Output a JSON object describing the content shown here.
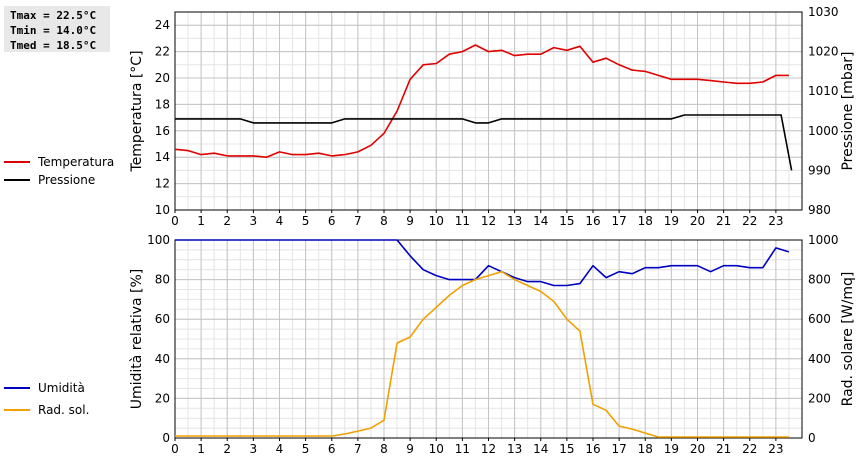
{
  "stats": {
    "tmax": "Tmax = 22.5°C",
    "tmin": "Tmin = 14.0°C",
    "tmed": "Tmed = 18.5°C"
  },
  "chart_data": [
    {
      "type": "line",
      "ylabel": "Temperatura [°C]",
      "y2label": "Pressione [mbar]",
      "xlim": [
        0,
        24
      ],
      "ylim": [
        10,
        25
      ],
      "y2lim": [
        980,
        1030
      ],
      "xticks": [
        0,
        1,
        2,
        3,
        4,
        5,
        6,
        7,
        8,
        9,
        10,
        11,
        12,
        13,
        14,
        15,
        16,
        17,
        18,
        19,
        20,
        21,
        22,
        23
      ],
      "yticks": [
        10,
        12,
        14,
        16,
        18,
        20,
        22,
        24
      ],
      "y2ticks": [
        980,
        990,
        1000,
        1010,
        1020,
        1030
      ],
      "grid": true,
      "legend_position": "left",
      "series": [
        {
          "name": "Temperatura",
          "color": "#e00000",
          "axis": "left",
          "x": [
            0,
            0.5,
            1,
            1.5,
            2,
            2.5,
            3,
            3.5,
            4,
            4.5,
            5,
            5.5,
            6,
            6.5,
            7,
            7.5,
            8,
            8.5,
            9,
            9.5,
            10,
            10.5,
            11,
            11.5,
            12,
            12.5,
            13,
            13.5,
            14,
            14.5,
            15,
            15.5,
            16,
            16.5,
            17,
            17.5,
            18,
            18.5,
            19,
            19.5,
            20,
            20.5,
            21,
            21.5,
            22,
            22.5,
            23,
            23.5
          ],
          "values": [
            14.6,
            14.5,
            14.2,
            14.3,
            14.1,
            14.1,
            14.1,
            14.0,
            14.4,
            14.2,
            14.2,
            14.3,
            14.1,
            14.2,
            14.4,
            14.9,
            15.8,
            17.5,
            19.9,
            21.0,
            21.1,
            21.8,
            22.0,
            22.5,
            22.0,
            22.1,
            21.7,
            21.8,
            21.8,
            22.3,
            22.1,
            22.4,
            21.2,
            21.5,
            21.0,
            20.6,
            20.5,
            20.2,
            19.9,
            19.9,
            19.9,
            19.8,
            19.7,
            19.6,
            19.6,
            19.7,
            20.2,
            20.2
          ]
        },
        {
          "name": "Pressione",
          "color": "#000000",
          "axis": "right",
          "x": [
            0,
            2.5,
            3,
            6,
            6.5,
            11,
            11.5,
            12,
            12.5,
            19,
            19.5,
            23.2,
            23.6
          ],
          "values": [
            1003,
            1003,
            1002,
            1002,
            1003,
            1003,
            1002,
            1002,
            1003,
            1003,
            1004,
            1004,
            990
          ]
        }
      ]
    },
    {
      "type": "line",
      "ylabel": "Umidità relativa [%]",
      "y2label": "Rad. solare [W/mq]",
      "xlim": [
        0,
        24
      ],
      "ylim": [
        0,
        100
      ],
      "y2lim": [
        0,
        1000
      ],
      "xticks": [
        0,
        1,
        2,
        3,
        4,
        5,
        6,
        7,
        8,
        9,
        10,
        11,
        12,
        13,
        14,
        15,
        16,
        17,
        18,
        19,
        20,
        21,
        22,
        23
      ],
      "yticks": [
        0,
        20,
        40,
        60,
        80,
        100
      ],
      "y2ticks": [
        0,
        200,
        400,
        600,
        800,
        1000
      ],
      "grid": true,
      "legend_position": "left",
      "series": [
        {
          "name": "Umidità",
          "color": "#0000c0",
          "axis": "left",
          "x": [
            0,
            8.5,
            9,
            9.5,
            10,
            10.5,
            11,
            11.5,
            12,
            12.5,
            13,
            13.5,
            14,
            14.5,
            15,
            15.5,
            16,
            16.5,
            17,
            17.5,
            18,
            18.5,
            19,
            19.5,
            20,
            20.5,
            21,
            21.5,
            22,
            22.5,
            23,
            23.5
          ],
          "values": [
            100,
            100,
            92,
            85,
            82,
            80,
            80,
            80,
            87,
            84,
            81,
            79,
            79,
            77,
            77,
            78,
            87,
            81,
            84,
            83,
            86,
            86,
            87,
            87,
            87,
            84,
            87,
            87,
            86,
            86,
            96,
            94
          ]
        },
        {
          "name": "Rad. sol.",
          "color": "#f0a000",
          "axis": "right",
          "x": [
            0,
            6,
            6.5,
            7,
            7.5,
            8,
            8.5,
            9,
            9.5,
            10,
            10.5,
            11,
            11.5,
            12,
            12.5,
            13,
            13.5,
            14,
            14.5,
            15,
            15.5,
            16,
            16.5,
            17,
            17.5,
            18,
            18.5,
            23.5
          ],
          "values": [
            10,
            10,
            20,
            35,
            50,
            90,
            480,
            510,
            600,
            660,
            720,
            770,
            800,
            820,
            840,
            800,
            770,
            740,
            690,
            600,
            540,
            170,
            140,
            60,
            45,
            25,
            5,
            5
          ]
        }
      ]
    }
  ]
}
